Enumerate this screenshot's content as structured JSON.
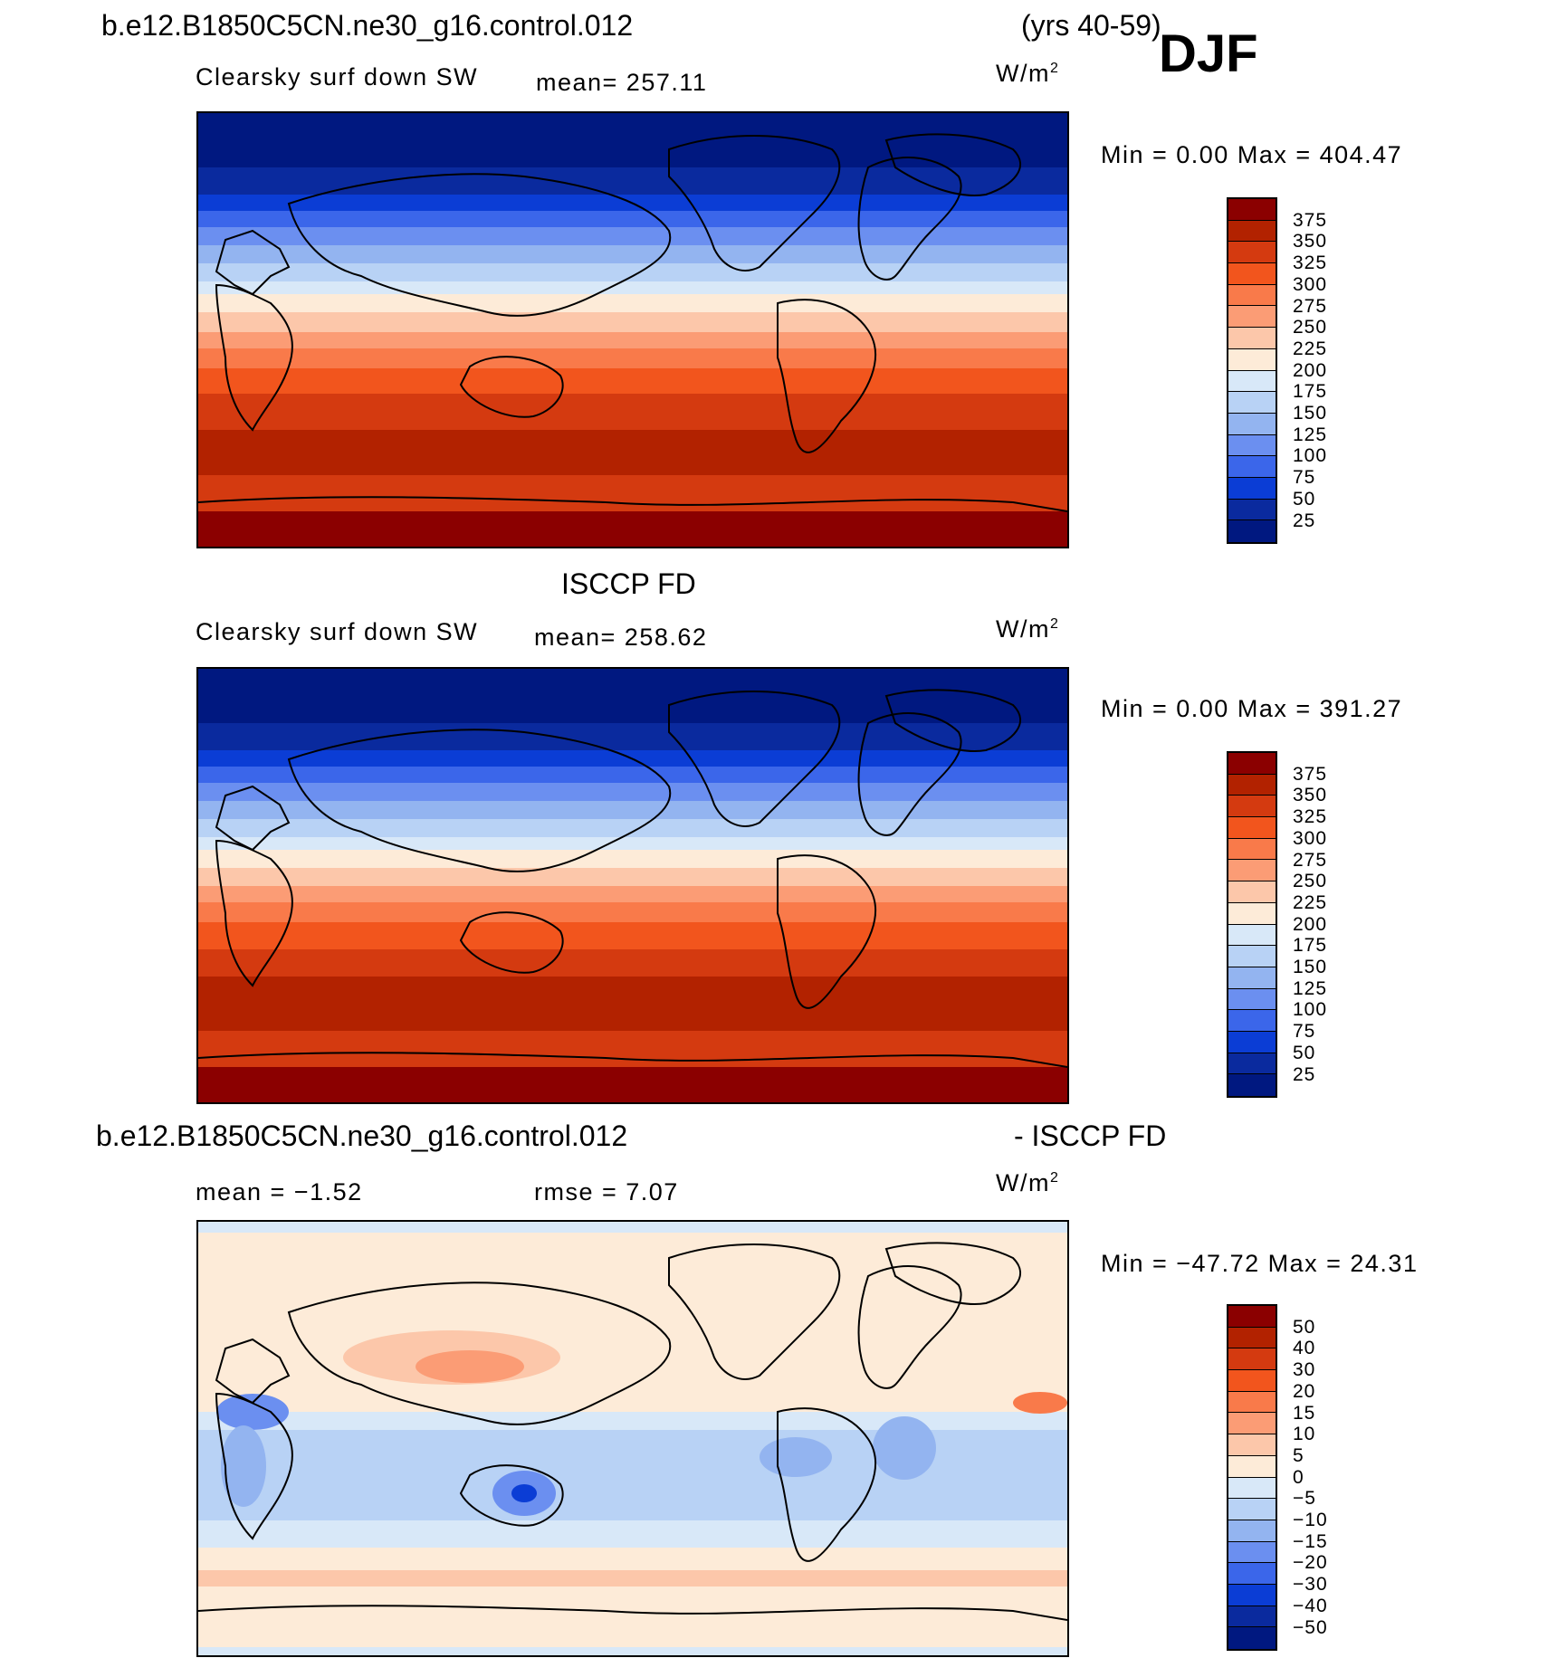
{
  "header": {
    "case_title": "b.e12.B1850C5CN.ne30_g16.control.012",
    "years": "(yrs 40-59)",
    "season": "DJF"
  },
  "panels": [
    {
      "title": "",
      "label": "Clearsky surf down SW",
      "stat1": "mean= 257.11",
      "stat2": "",
      "units": "W/m",
      "units_sup": "2",
      "range_text": "Min =    0.00 Max = 404.47",
      "colorbar_ticks": [
        "375",
        "350",
        "325",
        "300",
        "275",
        "250",
        "225",
        "200",
        "175",
        "150",
        "125",
        "100",
        "75",
        "50",
        "25"
      ]
    },
    {
      "title": "ISCCP FD",
      "label": "Clearsky surf down SW",
      "stat1": "mean= 258.62",
      "stat2": "",
      "units": "W/m",
      "units_sup": "2",
      "range_text": "Min =    0.00 Max = 391.27",
      "colorbar_ticks": [
        "375",
        "350",
        "325",
        "300",
        "275",
        "250",
        "225",
        "200",
        "175",
        "150",
        "125",
        "100",
        "75",
        "50",
        "25"
      ]
    },
    {
      "title_left": "b.e12.B1850C5CN.ne30_g16.control.012",
      "title_right": "- ISCCP FD",
      "label": "",
      "stat1": "mean =  −1.52",
      "stat2": "rmse =   7.07",
      "units": "W/m",
      "units_sup": "2",
      "range_text": "Min = −47.72 Max =  24.31",
      "colorbar_ticks": [
        "50",
        "40",
        "30",
        "20",
        "15",
        "10",
        "5",
        "0",
        "−5",
        "−10",
        "−15",
        "−20",
        "−30",
        "−40",
        "−50"
      ]
    }
  ],
  "colors": {
    "abs_scale": [
      "#8b0000",
      "#b22200",
      "#d43a10",
      "#f2551d",
      "#f97a4a",
      "#fb9c75",
      "#fcc7aa",
      "#fdebd8",
      "#d8e8f8",
      "#b8d2f5",
      "#93b4f0",
      "#6b8ff0",
      "#3b66ea",
      "#0b3dd5",
      "#0a2a9e",
      "#001880"
    ],
    "diff_scale": [
      "#8b0000",
      "#b22200",
      "#d43a10",
      "#f2551d",
      "#f97a4a",
      "#fb9c75",
      "#fcc7aa",
      "#fdebd8",
      "#d8e8f8",
      "#b8d2f5",
      "#93b4f0",
      "#6b8ff0",
      "#3b66ea",
      "#0b3dd5",
      "#0a2a9e",
      "#001880"
    ]
  }
}
